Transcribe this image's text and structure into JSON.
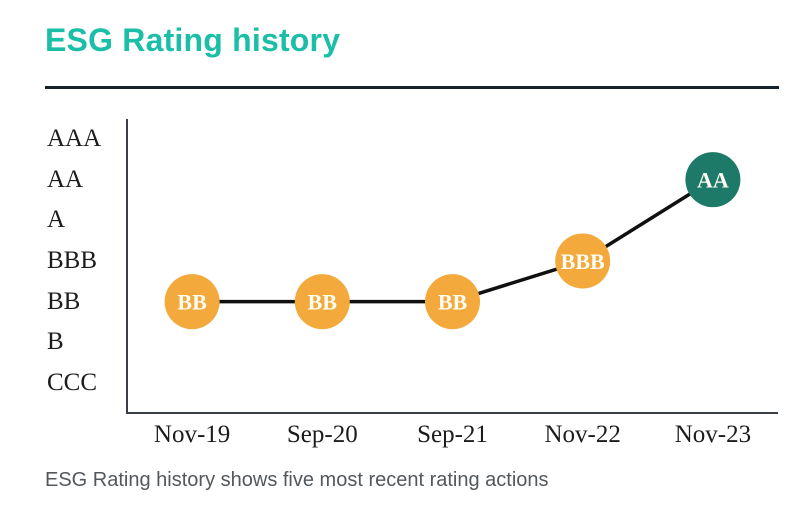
{
  "header": {
    "title": "ESG Rating history"
  },
  "caption": "ESG Rating history shows five most recent rating actions",
  "colors": {
    "title_teal": "#1BBEA6",
    "divider_navy": "#16222C",
    "axis": "#3A4046",
    "tick_label": "#1C1C1C",
    "caption_gray": "#53585D",
    "connector_line": "#101010",
    "point_orange": "#F3A93C",
    "point_dark_teal": "#1E7A68",
    "point_label_white": "#FFFDF4"
  },
  "chart_data": {
    "type": "line",
    "title": "ESG Rating history",
    "y_scale_top_to_bottom": [
      "AAA",
      "AA",
      "A",
      "BBB",
      "BB",
      "B",
      "CCC"
    ],
    "categories": [
      "Nov-19",
      "Sep-20",
      "Sep-21",
      "Nov-22",
      "Nov-23"
    ],
    "series": [
      {
        "name": "ESG Rating",
        "values": [
          "BB",
          "BB",
          "BB",
          "BBB",
          "AA"
        ]
      }
    ],
    "point_colors": [
      "#F3A93C",
      "#F3A93C",
      "#F3A93C",
      "#F3A93C",
      "#1E7A68"
    ],
    "grid": false,
    "legend": "none",
    "xlabel": "",
    "ylabel": ""
  }
}
